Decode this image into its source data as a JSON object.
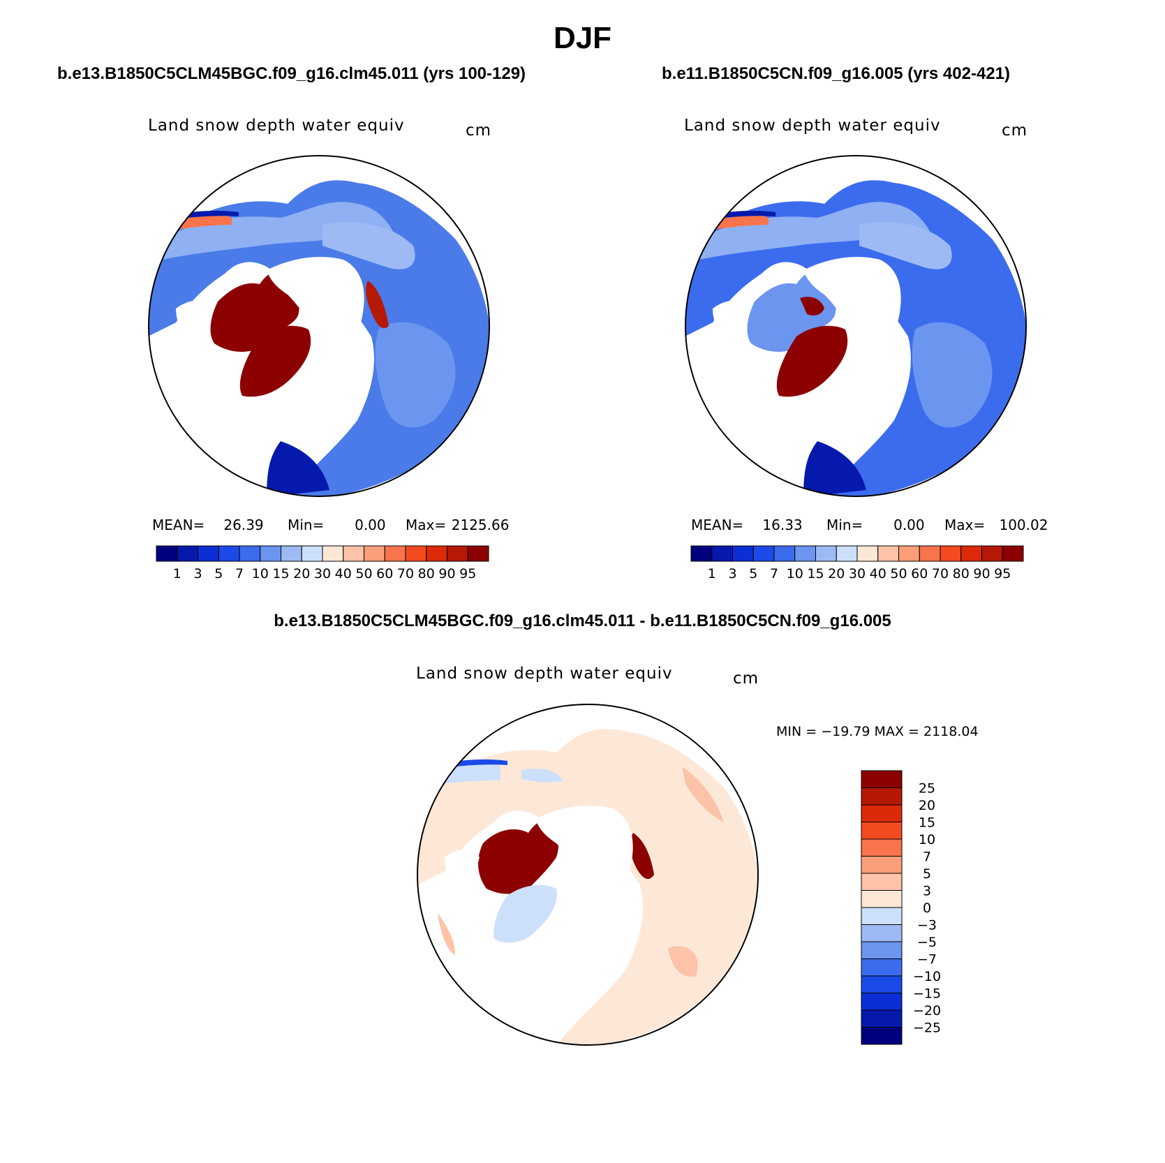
{
  "figure": {
    "title": "DJF"
  },
  "panels": [
    {
      "id": "left",
      "header": "b.e13.B1850C5CLM45BGC.f09_g16.clm45.011 (yrs 100-129)",
      "variable": "Land snow depth water equiv",
      "units": "cm",
      "stats": {
        "mean_label": "MEAN=",
        "mean": "26.39",
        "min_label": "Min=",
        "min": "0.00",
        "max_label": "Max=",
        "max": "2125.66"
      }
    },
    {
      "id": "right",
      "header": "b.e11.B1850C5CN.f09_g16.005 (yrs 402-421)",
      "variable": "Land snow depth water equiv",
      "units": "cm",
      "stats": {
        "mean_label": "MEAN=",
        "mean": "16.33",
        "min_label": "Min=",
        "min": "0.00",
        "max_label": "Max=",
        "max": "100.02"
      }
    },
    {
      "id": "diff",
      "header": "b.e13.B1850C5CLM45BGC.f09_g16.clm45.011 - b.e11.B1850C5CN.f09_g16.005",
      "variable": "Land snow depth water equiv",
      "units": "cm",
      "stats_text": "MIN = −19.79 MAX = 2118.04"
    }
  ],
  "colorbars": {
    "absolute": {
      "labels": [
        "1",
        "3",
        "5",
        "7",
        "10",
        "15",
        "20",
        "30",
        "40",
        "50",
        "60",
        "70",
        "80",
        "90",
        "95"
      ],
      "colors": [
        "#00007f",
        "#0519ad",
        "#0b2fd4",
        "#1c4ae8",
        "#3c6cee",
        "#6c95f0",
        "#9dbaf5",
        "#cde0fb",
        "#fde8d8",
        "#fcc3a8",
        "#fb9f7a",
        "#f9744c",
        "#f44a1f",
        "#dc2a08",
        "#b61806",
        "#8c0000"
      ]
    },
    "difference": {
      "labels": [
        "25",
        "20",
        "15",
        "10",
        "7",
        "5",
        "3",
        "0",
        "−3",
        "−5",
        "−7",
        "−10",
        "−15",
        "−20",
        "−25"
      ],
      "colors": [
        "#8c0000",
        "#b61806",
        "#dc2a08",
        "#f44a1f",
        "#f9744c",
        "#fb9f7a",
        "#fcc3a8",
        "#fde8d8",
        "#cde0fb",
        "#9dbaf5",
        "#6c95f0",
        "#3c6cee",
        "#1c4ae8",
        "#0b2fd4",
        "#0519ad",
        "#00007f"
      ]
    }
  }
}
